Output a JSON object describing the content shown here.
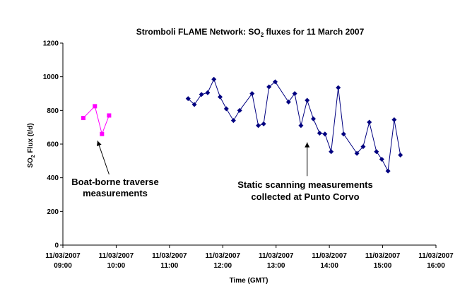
{
  "chart_data": {
    "type": "line",
    "title_prefix": "Stromboli FLAME Network: SO",
    "title_sub": "2",
    "title_suffix": " fluxes for 11 March 2007",
    "xlabel": "Time (GMT)",
    "ylabel_prefix": "SO",
    "ylabel_sub": "2",
    "ylabel_suffix": " Flux (t/d)",
    "xlim": [
      "09:00",
      "16:00"
    ],
    "ylim": [
      0,
      1200
    ],
    "y_ticks": [
      0,
      200,
      400,
      600,
      800,
      1000,
      1200
    ],
    "x_ticks": [
      {
        "date": "11/03/2007",
        "time": "09:00"
      },
      {
        "date": "11/03/2007",
        "time": "10:00"
      },
      {
        "date": "11/03/2007",
        "time": "11:00"
      },
      {
        "date": "11/03/2007",
        "time": "12:00"
      },
      {
        "date": "11/03/2007",
        "time": "13:00"
      },
      {
        "date": "11/03/2007",
        "time": "14:00"
      },
      {
        "date": "11/03/2007",
        "time": "15:00"
      },
      {
        "date": "11/03/2007",
        "time": "16:00"
      }
    ],
    "grid": false,
    "legend": "none",
    "series": [
      {
        "color": "#ff00ff",
        "marker": "square",
        "points": [
          {
            "x": "09:23",
            "y": 755
          },
          {
            "x": "09:36",
            "y": 825
          },
          {
            "x": "09:44",
            "y": 660
          },
          {
            "x": "09:52",
            "y": 770
          }
        ]
      },
      {
        "color": "#000080",
        "marker": "diamond",
        "points": [
          {
            "x": "11:21",
            "y": 870
          },
          {
            "x": "11:28",
            "y": 835
          },
          {
            "x": "11:36",
            "y": 895
          },
          {
            "x": "11:43",
            "y": 905
          },
          {
            "x": "11:50",
            "y": 985
          },
          {
            "x": "11:57",
            "y": 880
          },
          {
            "x": "12:04",
            "y": 810
          },
          {
            "x": "12:12",
            "y": 740
          },
          {
            "x": "12:19",
            "y": 800
          },
          {
            "x": "12:33",
            "y": 900
          },
          {
            "x": "12:40",
            "y": 710
          },
          {
            "x": "12:46",
            "y": 720
          },
          {
            "x": "12:52",
            "y": 940
          },
          {
            "x": "12:59",
            "y": 970
          },
          {
            "x": "13:14",
            "y": 850
          },
          {
            "x": "13:21",
            "y": 900
          },
          {
            "x": "13:28",
            "y": 710
          },
          {
            "x": "13:35",
            "y": 860
          },
          {
            "x": "13:42",
            "y": 750
          },
          {
            "x": "13:49",
            "y": 665
          },
          {
            "x": "13:55",
            "y": 660
          },
          {
            "x": "14:02",
            "y": 555
          },
          {
            "x": "14:10",
            "y": 935
          },
          {
            "x": "14:16",
            "y": 660
          },
          {
            "x": "14:31",
            "y": 545
          },
          {
            "x": "14:38",
            "y": 585
          },
          {
            "x": "14:45",
            "y": 730
          },
          {
            "x": "14:53",
            "y": 555
          },
          {
            "x": "14:59",
            "y": 510
          },
          {
            "x": "15:06",
            "y": 440
          },
          {
            "x": "15:13",
            "y": 745
          },
          {
            "x": "15:20",
            "y": 535
          }
        ]
      }
    ],
    "annotations": [
      {
        "lines": [
          "Boat-borne traverse",
          "measurements"
        ],
        "arrow_to": {
          "x": "09:39",
          "y": 620
        },
        "arrow_from": {
          "x": "09:52",
          "y": 420
        }
      },
      {
        "lines": [
          "Static scanning measurements",
          "collected at Punto Corvo"
        ],
        "arrow_to": {
          "x": "13:35",
          "y": 610
        },
        "arrow_from": {
          "x": "13:35",
          "y": 410
        }
      }
    ]
  }
}
